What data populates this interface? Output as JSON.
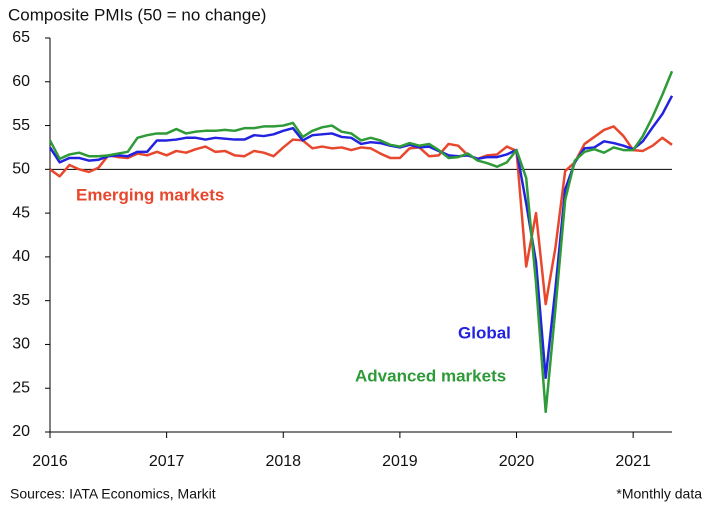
{
  "chart_data": {
    "type": "line",
    "title": "Composite PMIs (50 = no change)",
    "source": "Sources: IATA Economics, Markit",
    "note": "*Monthly data",
    "x": [
      2016,
      2016.083,
      2016.167,
      2016.25,
      2016.333,
      2016.417,
      2016.5,
      2016.583,
      2016.667,
      2016.75,
      2016.833,
      2016.917,
      2017,
      2017.083,
      2017.167,
      2017.25,
      2017.333,
      2017.417,
      2017.5,
      2017.583,
      2017.667,
      2017.75,
      2017.833,
      2017.917,
      2018,
      2018.083,
      2018.167,
      2018.25,
      2018.333,
      2018.417,
      2018.5,
      2018.583,
      2018.667,
      2018.75,
      2018.833,
      2018.917,
      2019,
      2019.083,
      2019.167,
      2019.25,
      2019.333,
      2019.417,
      2019.5,
      2019.583,
      2019.667,
      2019.75,
      2019.833,
      2019.917,
      2020,
      2020.083,
      2020.167,
      2020.25,
      2020.333,
      2020.417,
      2020.5,
      2020.583,
      2020.667,
      2020.75,
      2020.833,
      2020.917,
      2021,
      2021.083,
      2021.167,
      2021.25,
      2021.333
    ],
    "series": [
      {
        "name": "Emerging markets",
        "color": "#e8472d",
        "values": [
          50.0,
          49.2,
          50.5,
          50.0,
          49.7,
          50.2,
          51.6,
          51.4,
          51.3,
          51.8,
          51.6,
          52.0,
          51.6,
          52.1,
          51.9,
          52.3,
          52.6,
          52.0,
          52.1,
          51.6,
          51.5,
          52.1,
          51.9,
          51.5,
          52.5,
          53.4,
          53.3,
          52.4,
          52.6,
          52.4,
          52.5,
          52.2,
          52.5,
          52.4,
          51.8,
          51.3,
          51.3,
          52.4,
          52.5,
          51.5,
          51.6,
          52.9,
          52.7,
          51.6,
          51.2,
          51.6,
          51.7,
          52.6,
          52.1,
          38.9,
          45.0,
          34.6,
          41.0,
          49.8,
          50.8,
          52.9,
          53.7,
          54.5,
          54.9,
          53.8,
          52.2,
          52.1,
          52.7,
          53.6,
          52.8
        ]
      },
      {
        "name": "Global",
        "color": "#2222e0",
        "values": [
          52.5,
          50.8,
          51.3,
          51.3,
          51.0,
          51.1,
          51.5,
          51.6,
          51.5,
          52.0,
          52.0,
          53.3,
          53.3,
          53.4,
          53.6,
          53.6,
          53.4,
          53.6,
          53.5,
          53.4,
          53.4,
          53.9,
          53.8,
          54.0,
          54.4,
          54.7,
          53.3,
          53.9,
          54.0,
          54.1,
          53.7,
          53.6,
          52.9,
          53.1,
          53.0,
          52.7,
          52.5,
          52.8,
          52.5,
          52.6,
          52.1,
          51.6,
          51.5,
          51.6,
          51.2,
          51.4,
          51.4,
          51.7,
          52.2,
          46.1,
          39.4,
          26.2,
          36.3,
          47.7,
          50.8,
          52.4,
          52.5,
          53.2,
          53.0,
          52.7,
          52.3,
          53.2,
          54.8,
          56.3,
          58.4
        ]
      },
      {
        "name": "Advanced markets",
        "color": "#2e9a38",
        "values": [
          53.3,
          51.2,
          51.7,
          51.9,
          51.5,
          51.5,
          51.6,
          51.8,
          52.0,
          53.6,
          53.9,
          54.1,
          54.1,
          54.6,
          54.1,
          54.3,
          54.4,
          54.4,
          54.5,
          54.4,
          54.7,
          54.7,
          54.9,
          54.9,
          55.0,
          55.3,
          53.7,
          54.4,
          54.8,
          55.0,
          54.3,
          54.1,
          53.3,
          53.6,
          53.3,
          52.8,
          52.6,
          53.0,
          52.7,
          52.9,
          52.2,
          51.3,
          51.4,
          51.8,
          51.0,
          50.7,
          50.3,
          50.8,
          52.2,
          49.0,
          37.0,
          22.3,
          34.0,
          46.5,
          51.0,
          52.0,
          52.3,
          51.9,
          52.5,
          52.2,
          52.2,
          53.8,
          56.0,
          58.5,
          61.2
        ]
      }
    ],
    "hline": 50,
    "xlim": [
      2016,
      2021.333
    ],
    "xticks": [
      2016,
      2017,
      2018,
      2019,
      2020,
      2021
    ],
    "ylim": [
      20,
      65
    ],
    "yticks": [
      20,
      25,
      30,
      35,
      40,
      45,
      50,
      55,
      60,
      65
    ]
  }
}
